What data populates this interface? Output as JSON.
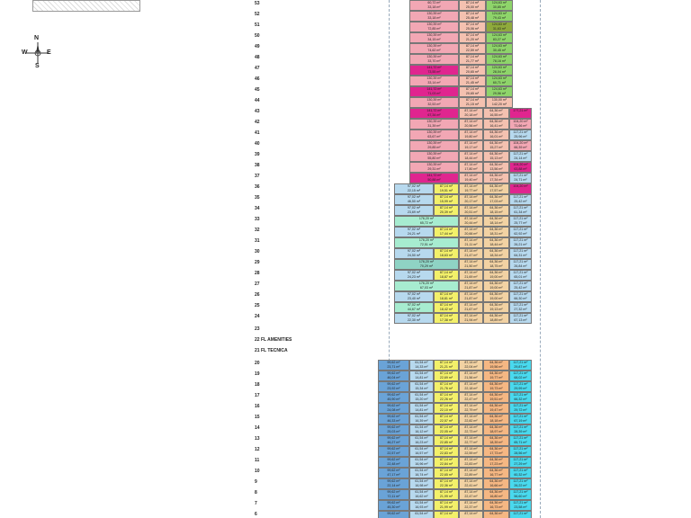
{
  "compass": {
    "n": "N",
    "s": "S",
    "e": "E",
    "w": "W"
  },
  "colors": {
    "pink": "#f2a7b4",
    "salmon": "#f4c1b0",
    "green": "#8ed46a",
    "olive": "#8faa3c",
    "magenta": "#e0258f",
    "cyan": "#49d9ee",
    "yellow": "#f3f06a",
    "tan": "#f2d2a3",
    "peach": "#f5b783",
    "blue": "#6aa3d7",
    "mint": "#a7ecd0",
    "teal": "#8fd3c4",
    "grey": "#c9c9c9",
    "lime": "#b8e986",
    "sky": "#b7d9ee",
    "lav": "#cdb6e6"
  },
  "floors": [
    {
      "n": "53",
      "cells": [
        [
          "60,72 m²",
          "pink"
        ],
        [
          "87,14 m²",
          "salmon"
        ],
        [
          "124,63 m²",
          "green"
        ]
      ],
      "second": [
        "33,18 m²",
        "25,00 m²",
        "30,85 m²"
      ]
    },
    {
      "n": "52",
      "cells": [
        [
          "130,39 m²",
          "pink"
        ],
        [
          "87,14 m²",
          "salmon"
        ],
        [
          "124,63 m²",
          "green"
        ]
      ],
      "second": [
        "33,18 m²",
        "25,48 m²",
        "79,43 m²"
      ]
    },
    {
      "n": "51",
      "cells": [
        [
          "130,39 m²",
          "pink"
        ],
        [
          "87,14 m²",
          "salmon"
        ],
        [
          "124,63 m²",
          "olive"
        ]
      ],
      "second": [
        "72,85 m²",
        "25,06 m²",
        "31,63 m²"
      ]
    },
    {
      "n": "50",
      "cells": [
        [
          "130,39 m²",
          "pink"
        ],
        [
          "87,14 m²",
          "salmon"
        ],
        [
          "124,63 m²",
          "green"
        ]
      ],
      "second": [
        "34,15 m²",
        "21,20 m²",
        "83,27 m²"
      ]
    },
    {
      "n": "49",
      "cells": [
        [
          "130,39 m²",
          "pink"
        ],
        [
          "87,14 m²",
          "salmon"
        ],
        [
          "124,63 m²",
          "green"
        ]
      ],
      "second": [
        "74,62 m²",
        "22,59 m²",
        "30,45 m²"
      ]
    },
    {
      "n": "48",
      "cells": [
        [
          "130,39 m²",
          "pink"
        ],
        [
          "87,14 m²",
          "salmon"
        ],
        [
          "124,63 m²",
          "green"
        ]
      ],
      "second": [
        "33,70 m²",
        "21,77 m²",
        "78,16 m²"
      ]
    },
    {
      "n": "47",
      "cells": [
        [
          "141,72 m²",
          "magenta"
        ],
        [
          "87,14 m²",
          "salmon"
        ],
        [
          "124,63 m²",
          "green"
        ]
      ],
      "second": [
        "73,55 m²",
        "20,65 m²",
        "28,04 m²"
      ]
    },
    {
      "n": "46",
      "cells": [
        [
          "130,39 m²",
          "pink"
        ],
        [
          "87,14 m²",
          "salmon"
        ],
        [
          "124,63 m²",
          "green"
        ]
      ],
      "second": [
        "33,14 m²",
        "21,45 m²",
        "60,71 m²"
      ]
    },
    {
      "n": "45",
      "cells": [
        [
          "141,72 m²",
          "magenta"
        ],
        [
          "87,14 m²",
          "salmon"
        ],
        [
          "124,63 m²",
          "green"
        ]
      ],
      "second": [
        "71,03 m²",
        "20,65 m²",
        "29,56 m²"
      ]
    },
    {
      "n": "44",
      "cells": [
        [
          "130,39 m²",
          "pink"
        ],
        [
          "87,14 m²",
          "salmon"
        ],
        [
          "130,00 m²",
          "salmon"
        ]
      ],
      "second": [
        "32,53 m²",
        "21,15 m²",
        "142,20 m²"
      ]
    },
    {
      "n": "43",
      "cells": [
        [
          "141,72 m²",
          "magenta"
        ],
        [
          "87,14 m²",
          "salmon"
        ],
        [
          "64,36 m²",
          "salmon"
        ],
        [
          "1?7,21 m²",
          "magenta"
        ]
      ],
      "second": [
        "67,34 m²",
        "20,18 m²",
        "16,55 m²",
        ""
      ]
    },
    {
      "n": "42",
      "cells": [
        [
          "130,39 m²",
          "pink"
        ],
        [
          "87,14 m²",
          "salmon"
        ],
        [
          "64,36 m²",
          "salmon"
        ],
        [
          "104,20 m²",
          "pink"
        ]
      ],
      "second": [
        "31,39 m²",
        "20,56 m²",
        "16,41 m²",
        "71,66 m²"
      ]
    },
    {
      "n": "41",
      "cells": [
        [
          "130,39 m²",
          "pink"
        ],
        [
          "87,14 m²",
          "salmon"
        ],
        [
          "64,36 m²",
          "salmon"
        ],
        [
          "117,21 m²",
          "sky"
        ]
      ],
      "second": [
        "63,67 m²",
        "19,80 m²",
        "16,01 m²",
        "25,96 m²"
      ]
    },
    {
      "n": "40",
      "cells": [
        [
          "130,39 m²",
          "pink"
        ],
        [
          "87,14 m²",
          "salmon"
        ],
        [
          "64,36 m²",
          "salmon"
        ],
        [
          "104,20 m²",
          "pink"
        ]
      ],
      "second": [
        "29,85 m²",
        "19,17 m²",
        "15,27 m²",
        "66,39 m²"
      ]
    },
    {
      "n": "39",
      "cells": [
        [
          "130,39 m²",
          "pink"
        ],
        [
          "87,14 m²",
          "salmon"
        ],
        [
          "64,36 m²",
          "salmon"
        ],
        [
          "117,21 m²",
          "sky"
        ]
      ],
      "second": [
        "55,80 m²",
        "18,44 m²",
        "15,13 m²",
        "24,14 m²"
      ]
    },
    {
      "n": "38",
      "cells": [
        [
          "130,39 m²",
          "pink"
        ],
        [
          "87,14 m²",
          "salmon"
        ],
        [
          "64,36 m²",
          "salmon"
        ],
        [
          "104,20 m²",
          "magenta"
        ]
      ],
      "second": [
        "29,31 m²",
        "17,80 m²",
        "13,56 m²",
        "63,88 m²"
      ]
    },
    {
      "n": "37",
      "cells": [
        [
          "141,72 m²",
          "magenta"
        ],
        [
          "87,14 m²",
          "salmon"
        ],
        [
          "64,36 m²",
          "salmon"
        ],
        [
          "117,21 m²",
          "sky"
        ]
      ],
      "second": [
        "50,88 m²",
        "19,40 m²",
        "17,34 m²",
        "24,71 m²"
      ]
    },
    {
      "n": "36",
      "w": 1,
      "cells": [
        [
          "97,02 m²",
          "sky"
        ],
        [
          "87,14 m²",
          "yellow"
        ],
        [
          "87,14 m²",
          "tan"
        ],
        [
          "64,36 m²",
          "tan"
        ],
        [
          "104,20 m²",
          "magenta"
        ]
      ],
      "second": [
        "22,15 m²",
        "19,51 m²",
        "19,77 m²",
        "17,57 m²",
        ""
      ]
    },
    {
      "n": "35",
      "w": 1,
      "cells": [
        [
          "97,02 m²",
          "sky"
        ],
        [
          "87,14 m²",
          "yellow"
        ],
        [
          "87,14 m²",
          "tan"
        ],
        [
          "64,36 m²",
          "tan"
        ],
        [
          "117,21 m²",
          "sky"
        ]
      ],
      "second": [
        "46,50 m²",
        "15,99 m²",
        "20,17 m²",
        "17,03 m²",
        "25,42 m²"
      ]
    },
    {
      "n": "34",
      "w": 1,
      "cells": [
        [
          "97,02 m²",
          "sky"
        ],
        [
          "87,14 m²",
          "yellow"
        ],
        [
          "87,14 m²",
          "tan"
        ],
        [
          "64,36 m²",
          "tan"
        ],
        [
          "117,21 m²",
          "sky"
        ]
      ],
      "second": [
        "23,69 m²",
        "20,39 m²",
        "20,51 m²",
        "18,15 m²",
        "61,34 m²"
      ]
    },
    {
      "n": "33",
      "w": 1,
      "cells": [
        [
          "176,20 m²",
          "mint"
        ],
        [
          "87,14 m²",
          "tan"
        ],
        [
          "64,36 m²",
          "tan"
        ],
        [
          "117,21 m²",
          "sky"
        ]
      ],
      "second": [
        "65,72 m²",
        "20,44 m²",
        "18,14 m²",
        "25,77 m²"
      ]
    },
    {
      "n": "32",
      "w": 1,
      "cells": [
        [
          "97,02 m²",
          "sky"
        ],
        [
          "87,14 m²",
          "yellow"
        ],
        [
          "87,14 m²",
          "tan"
        ],
        [
          "64,36 m²",
          "tan"
        ],
        [
          "117,21 m²",
          "sky"
        ]
      ],
      "second": [
        "24,21 m²",
        "17,44 m²",
        "20,66 m²",
        "18,31 m²",
        "62,92 m²"
      ]
    },
    {
      "n": "31",
      "w": 1,
      "cells": [
        [
          "176,20 m²",
          "mint"
        ],
        [
          "87,14 m²",
          "tan"
        ],
        [
          "64,36 m²",
          "tan"
        ],
        [
          "117,21 m²",
          "sky"
        ]
      ],
      "second": [
        "72,51 m²",
        "21,11 m²",
        "18,44 m²",
        "26,21 m²"
      ]
    },
    {
      "n": "30",
      "w": 1,
      "cells": [
        [
          "97,02 m²",
          "sky"
        ],
        [
          "87,14 m²",
          "yellow"
        ],
        [
          "87,14 m²",
          "tan"
        ],
        [
          "64,36 m²",
          "tan"
        ],
        [
          "117,21 m²",
          "sky"
        ]
      ],
      "second": [
        "24,50 m²",
        "18,63 m²",
        "21,47 m²",
        "18,34 m²",
        "64,31 m²"
      ]
    },
    {
      "n": "29",
      "w": 1,
      "cells": [
        [
          "176,20 m²",
          "teal"
        ],
        [
          "87,14 m²",
          "tan"
        ],
        [
          "64,36 m²",
          "tan"
        ],
        [
          "117,21 m²",
          "sky"
        ]
      ],
      "second": [
        "70,29 m²",
        "21,50 m²",
        "18,75 m²",
        "26,84 m²"
      ]
    },
    {
      "n": "28",
      "w": 1,
      "cells": [
        [
          "97,02 m²",
          "sky"
        ],
        [
          "87,14 m²",
          "yellow"
        ],
        [
          "87,14 m²",
          "tan"
        ],
        [
          "64,36 m²",
          "tan"
        ],
        [
          "117,21 m²",
          "sky"
        ]
      ],
      "second": [
        "24,23 m²",
        "18,87 m²",
        "21,69 m²",
        "19,00 m²",
        "65,01 m²"
      ]
    },
    {
      "n": "27",
      "w": 1,
      "cells": [
        [
          "176,20 m²",
          "mint"
        ],
        [
          "87,14 m²",
          "tan"
        ],
        [
          "64,36 m²",
          "tan"
        ],
        [
          "117,21 m²",
          "sky"
        ]
      ],
      "second": [
        "67,03 m²",
        "21,87 m²",
        "19,00 m²",
        "25,42 m²"
      ]
    },
    {
      "n": "26",
      "w": 1,
      "cells": [
        [
          "97,02 m²",
          "sky"
        ],
        [
          "87,14 m²",
          "yellow"
        ],
        [
          "87,14 m²",
          "tan"
        ],
        [
          "64,36 m²",
          "tan"
        ],
        [
          "117,21 m²",
          "sky"
        ]
      ],
      "second": [
        "23,40 m²",
        "18,81 m²",
        "21,87 m²",
        "19,00 m²",
        "66,30 m²"
      ]
    },
    {
      "n": "25",
      "w": 1,
      "cells": [
        [
          "97,02 m²",
          "mint"
        ],
        [
          "87,14 m²",
          "yellow"
        ],
        [
          "87,14 m²",
          "tan"
        ],
        [
          "64,36 m²",
          "tan"
        ],
        [
          "117,21 m²",
          "sky"
        ]
      ],
      "second": [
        "44,67 m²",
        "18,42 m²",
        "21,67 m²",
        "19,13 m²",
        "27,32 m²"
      ]
    },
    {
      "n": "24",
      "w": 1,
      "cells": [
        [
          "97,02 m²",
          "sky"
        ],
        [
          "87,14 m²",
          "yellow"
        ],
        [
          "87,14 m²",
          "tan"
        ],
        [
          "64,36 m²",
          "tan"
        ],
        [
          "117,21 m²",
          "sky"
        ]
      ],
      "second": [
        "22,30 m²",
        "17,38 m²",
        "21,94 m²",
        "18,89 m²",
        "67,13 m²"
      ]
    }
  ],
  "blank_floors": [
    {
      "n": "23",
      "label": ""
    },
    {
      "n": "22",
      "label": "FL AMENITIES"
    },
    {
      "n": "21",
      "label": "FL TECNICA"
    }
  ],
  "lower_floors": [
    {
      "n": "20",
      "cells": [
        "99,62 m²",
        "61,54 m²",
        "87,14 m²",
        "87,14 m²",
        "64,36 m²",
        "117,21 m²"
      ],
      "second": [
        "23,71 m²",
        "14,33 m²",
        "21,21 m²",
        "22,04 m²",
        "19,56 m²",
        "29,87 m²"
      ]
    },
    {
      "n": "19",
      "cells": [
        "99,62 m²",
        "61,54 m²",
        "87,14 m²",
        "87,14 m²",
        "64,36 m²",
        "117,21 m²"
      ],
      "second": [
        "46,04 m²",
        "14,81 m²",
        "22,69 m²",
        "21,56 m²",
        "19,77 m²",
        "68,02 m²"
      ]
    },
    {
      "n": "18",
      "cells": [
        "99,62 m²",
        "61,54 m²",
        "87,14 m²",
        "87,14 m²",
        "64,36 m²",
        "117,21 m²"
      ],
      "second": [
        "23,92 m²",
        "15,34 m²",
        "21,76 m²",
        "22,18 m²",
        "19,73 m²",
        "29,99 m²"
      ]
    },
    {
      "n": "17",
      "cells": [
        "99,62 m²",
        "61,54 m²",
        "87,14 m²",
        "87,14 m²",
        "64,36 m²",
        "117,21 m²"
      ],
      "second": [
        "45,90 m²",
        "15,20 m²",
        "22,26 m²",
        "22,47 m²",
        "19,51 m²",
        "66,32 m²"
      ]
    },
    {
      "n": "16",
      "cells": [
        "99,62 m²",
        "61,54 m²",
        "87,14 m²",
        "87,14 m²",
        "64,36 m²",
        "117,21 m²"
      ],
      "second": [
        "24,08 m²",
        "14,81 m²",
        "22,10 m²",
        "22,79 m²",
        "19,47 m²",
        "29,72 m²"
      ]
    },
    {
      "n": "15",
      "cells": [
        "99,62 m²",
        "61,54 m²",
        "87,14 m²",
        "87,14 m²",
        "64,36 m²",
        "117,21 m²"
      ],
      "second": [
        "46,33 m²",
        "16,39 m²",
        "22,57 m²",
        "22,82 m²",
        "18,18 m²",
        "67,19 m²"
      ]
    },
    {
      "n": "14",
      "cells": [
        "99,62 m²",
        "61,54 m²",
        "87,14 m²",
        "87,14 m²",
        "64,36 m²",
        "117,21 m²"
      ],
      "second": [
        "25,03 m²",
        "16,12 m²",
        "22,05 m²",
        "22,73 m²",
        "18,97 m²",
        "28,39 m²"
      ]
    },
    {
      "n": "13",
      "cells": [
        "99,62 m²",
        "61,54 m²",
        "87,14 m²",
        "87,14 m²",
        "64,36 m²",
        "117,21 m²"
      ],
      "second": [
        "46,27 m²",
        "16,23 m²",
        "22,85 m²",
        "22,77 m²",
        "18,39 m²",
        "65,71 m²"
      ]
    },
    {
      "n": "12",
      "cells": [
        "99,62 m²",
        "61,54 m²",
        "87,14 m²",
        "87,14 m²",
        "64,36 m²",
        "117,21 m²"
      ],
      "second": [
        "22,57 m²",
        "16,57 m²",
        "22,83 m²",
        "22,59 m²",
        "17,73 m²",
        "28,56 m²"
      ]
    },
    {
      "n": "11",
      "cells": [
        "99,62 m²",
        "61,54 m²",
        "87,14 m²",
        "87,14 m²",
        "64,36 m²",
        "117,21 m²"
      ],
      "second": [
        "22,48 m²",
        "16,96 m²",
        "22,84 m²",
        "22,83 m²",
        "17,23 m²",
        "27,29 m²"
      ]
    },
    {
      "n": "10",
      "cells": [
        "99,62 m²",
        "61,54 m²",
        "87,14 m²",
        "87,14 m²",
        "64,36 m²",
        "117,21 m²"
      ],
      "second": [
        "47,17 m²",
        "16,74 m²",
        "22,65 m²",
        "22,89 m²",
        "16,77 m²",
        "60,32 m²"
      ]
    },
    {
      "n": "9",
      "cells": [
        "99,62 m²",
        "61,54 m²",
        "87,14 m²",
        "87,14 m²",
        "64,36 m²",
        "117,21 m²"
      ],
      "second": [
        "22,14 m²",
        "16,98 m²",
        "22,36 m²",
        "22,41 m²",
        "16,66 m²",
        "26,22 m²"
      ]
    },
    {
      "n": "8",
      "cells": [
        "99,62 m²",
        "61,54 m²",
        "87,14 m²",
        "87,14 m²",
        "64,36 m²",
        "117,21 m²"
      ],
      "second": [
        "72,11 m²",
        "16,62 m²",
        "21,99 m²",
        "22,47 m²",
        "16,80 m²",
        "56,60 m²"
      ]
    },
    {
      "n": "7",
      "cells": [
        "99,62 m²",
        "61,54 m²",
        "87,14 m²",
        "87,14 m²",
        "64,36 m²",
        "117,21 m²"
      ],
      "second": [
        "45,30 m²",
        "16,93 m²",
        "21,99 m²",
        "22,37 m²",
        "16,73 m²",
        "23,58 m²"
      ]
    },
    {
      "n": "6",
      "cells": [
        "99,62 m²",
        "61,54 m²",
        "87,14 m²",
        "87,14 m²",
        "64,36 m²",
        "117,21 m²"
      ],
      "second": [
        "",
        "",
        "",
        "",
        "",
        ""
      ]
    }
  ],
  "lower_colors": [
    "blue",
    "sky",
    "yellow",
    "tan",
    "peach",
    "cyan"
  ]
}
